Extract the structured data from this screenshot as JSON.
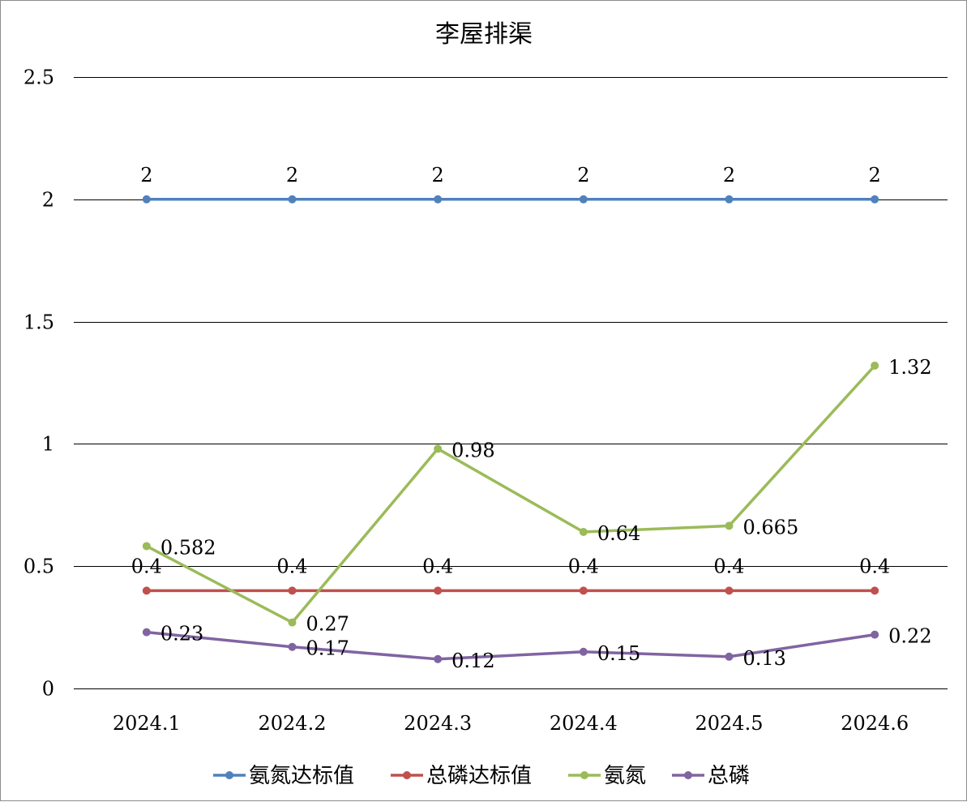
{
  "chart_data": {
    "type": "line",
    "title": "李屋排渠",
    "categories": [
      "2024.1",
      "2024.2",
      "2024.3",
      "2024.4",
      "2024.5",
      "2024.6"
    ],
    "ylim": [
      0,
      2.5
    ],
    "yticks": [
      0,
      0.5,
      1,
      1.5,
      2,
      2.5
    ],
    "ytick_labels": [
      "0",
      "0.5",
      "1",
      "1.5",
      "2",
      "2.5"
    ],
    "grid": true,
    "legend_position": "bottom",
    "series": [
      {
        "name": "氨氮达标值",
        "color": "#4f81bd",
        "values": [
          2,
          2,
          2,
          2,
          2,
          2
        ],
        "labels": [
          "2",
          "2",
          "2",
          "2",
          "2",
          "2"
        ],
        "label_pos": "above"
      },
      {
        "name": "总磷达标值",
        "color": "#c0504d",
        "values": [
          0.4,
          0.4,
          0.4,
          0.4,
          0.4,
          0.4
        ],
        "labels": [
          "0.4",
          "0.4",
          "0.4",
          "0.4",
          "0.4",
          "0.4"
        ],
        "label_pos": "above"
      },
      {
        "name": "氨氮",
        "color": "#9bbb59",
        "values": [
          0.582,
          0.27,
          0.98,
          0.64,
          0.665,
          1.32
        ],
        "labels": [
          "0.582",
          "0.27",
          "0.98",
          "0.64",
          "0.665",
          "1.32"
        ],
        "label_pos": "right"
      },
      {
        "name": "总磷",
        "color": "#8064a2",
        "values": [
          0.23,
          0.17,
          0.12,
          0.15,
          0.13,
          0.22
        ],
        "labels": [
          "0.23",
          "0.17",
          "0.12",
          "0.15",
          "0.13",
          "0.22"
        ],
        "label_pos": "right"
      }
    ]
  }
}
